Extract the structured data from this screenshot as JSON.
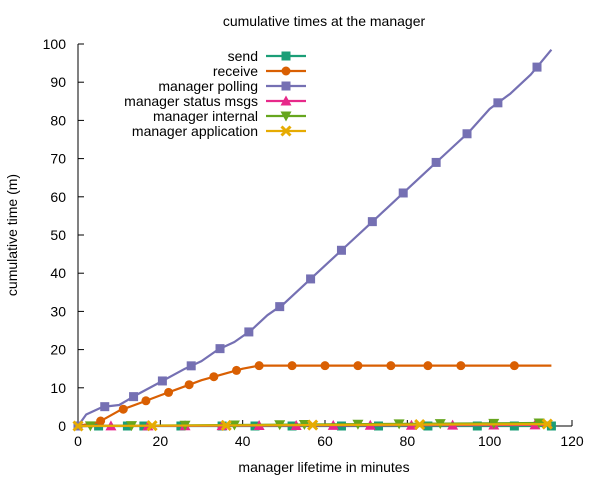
{
  "chart_data": {
    "type": "line",
    "title": "cumulative times at the manager",
    "xlabel": "manager lifetime in minutes",
    "ylabel": "cumulative time (m)",
    "xlim": [
      0,
      120
    ],
    "ylim": [
      0,
      100
    ],
    "xticks": [
      0,
      20,
      40,
      60,
      80,
      100,
      120
    ],
    "yticks": [
      0,
      10,
      20,
      30,
      40,
      50,
      60,
      70,
      80,
      90,
      100
    ],
    "grid": false,
    "legend_position": "top-left",
    "series": [
      {
        "name": "send",
        "color": "#1b9e77",
        "marker": "square",
        "points": [
          [
            0,
            0
          ],
          [
            115,
            0
          ]
        ],
        "marker_x": [
          0,
          5,
          12,
          16,
          25,
          35,
          43,
          52,
          64,
          73,
          85,
          97,
          106,
          115
        ]
      },
      {
        "name": "receive",
        "color": "#d95f02",
        "marker": "circle",
        "points": [
          [
            0,
            0
          ],
          [
            5,
            1
          ],
          [
            10,
            4
          ],
          [
            15,
            6
          ],
          [
            20,
            8
          ],
          [
            25,
            10
          ],
          [
            30,
            12
          ],
          [
            35,
            13.5
          ],
          [
            40,
            15
          ],
          [
            44,
            15.8
          ],
          [
            50,
            15.8
          ],
          [
            115,
            15.8
          ]
        ],
        "marker_x": [
          0,
          5.5,
          11,
          16.5,
          22,
          27,
          33,
          38.5,
          44,
          52,
          60,
          68,
          76,
          85,
          93,
          106
        ]
      },
      {
        "name": "manager polling",
        "color": "#7570b3",
        "marker": "square",
        "points": [
          [
            0,
            0
          ],
          [
            2,
            3
          ],
          [
            6,
            5
          ],
          [
            10,
            5.5
          ],
          [
            14,
            8
          ],
          [
            20,
            11.5
          ],
          [
            26,
            15
          ],
          [
            30,
            17
          ],
          [
            34,
            20
          ],
          [
            38,
            22
          ],
          [
            42,
            25
          ],
          [
            46,
            29
          ],
          [
            50,
            32
          ],
          [
            55,
            37
          ],
          [
            60,
            42
          ],
          [
            65,
            47
          ],
          [
            70,
            52
          ],
          [
            75,
            57
          ],
          [
            80,
            62
          ],
          [
            85,
            67
          ],
          [
            90,
            72
          ],
          [
            95,
            77
          ],
          [
            100,
            83
          ],
          [
            105,
            87
          ],
          [
            110,
            92
          ],
          [
            115,
            98.5
          ]
        ],
        "marker_x": [
          0,
          6.5,
          13.5,
          20.5,
          27.5,
          34.5,
          41.5,
          49,
          56.5,
          64,
          71.5,
          79,
          87,
          94.5,
          102,
          111.5
        ]
      },
      {
        "name": "manager status msgs",
        "color": "#e7298a",
        "marker": "triangle-up",
        "points": [
          [
            0,
            0
          ],
          [
            115,
            0.3
          ]
        ],
        "marker_x": [
          8,
          17,
          26,
          35,
          44,
          53,
          62,
          71,
          81,
          91,
          101,
          111
        ]
      },
      {
        "name": "manager internal",
        "color": "#66a61e",
        "marker": "triangle-down",
        "points": [
          [
            0,
            0
          ],
          [
            115,
            0.8
          ]
        ],
        "marker_x": [
          3,
          13,
          26,
          38,
          49,
          55,
          68,
          78,
          88,
          101,
          112
        ]
      },
      {
        "name": "manager application",
        "color": "#e6ab02",
        "marker": "cross",
        "points": [
          [
            0,
            0
          ],
          [
            115,
            0.5
          ]
        ],
        "marker_x": [
          0,
          18,
          36,
          57,
          83,
          114
        ]
      }
    ]
  }
}
